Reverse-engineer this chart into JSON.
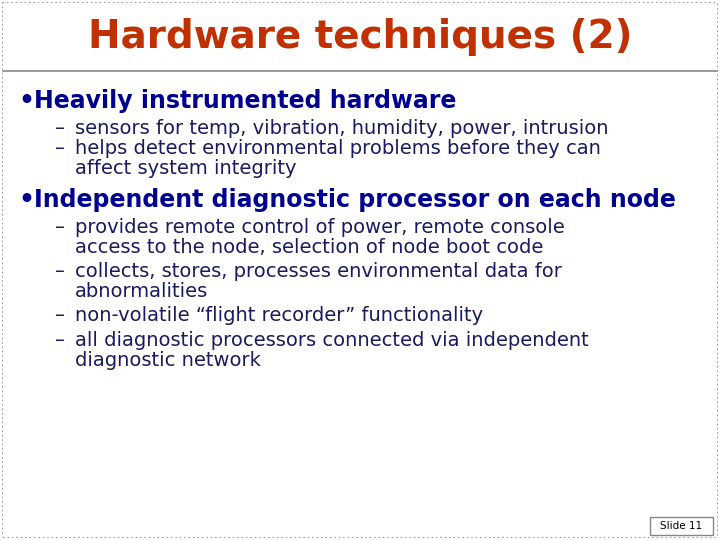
{
  "title": "Hardware techniques (2)",
  "title_color": "#C03000",
  "title_fontsize": 28,
  "bg_color": "#FFFFFF",
  "slide_border_color": "#888888",
  "body_bg": "#FFFFFF",
  "bullet1_text": "Heavily instrumented hardware",
  "bullet1_color": "#000090",
  "bullet2_text": "Independent diagnostic processor on each node",
  "bullet2_color": "#000090",
  "sub_color": "#1a1a60",
  "sub_items_1": [
    "sensors for temp, vibration, humidity, power, intrusion",
    "helps detect environmental problems before they can\naffect system integrity"
  ],
  "sub_items_2": [
    "provides remote control of power, remote console\naccess to the node, selection of node boot code",
    "collects, stores, processes environmental data for\nabnormalities",
    "non-volatile “flight recorder” functionality",
    "all diagnostic processors connected via independent\ndiagnostic network"
  ],
  "slide_label": "Slide 11",
  "title_border_bottom_color": "#888888",
  "slide_label_border": "#888888"
}
